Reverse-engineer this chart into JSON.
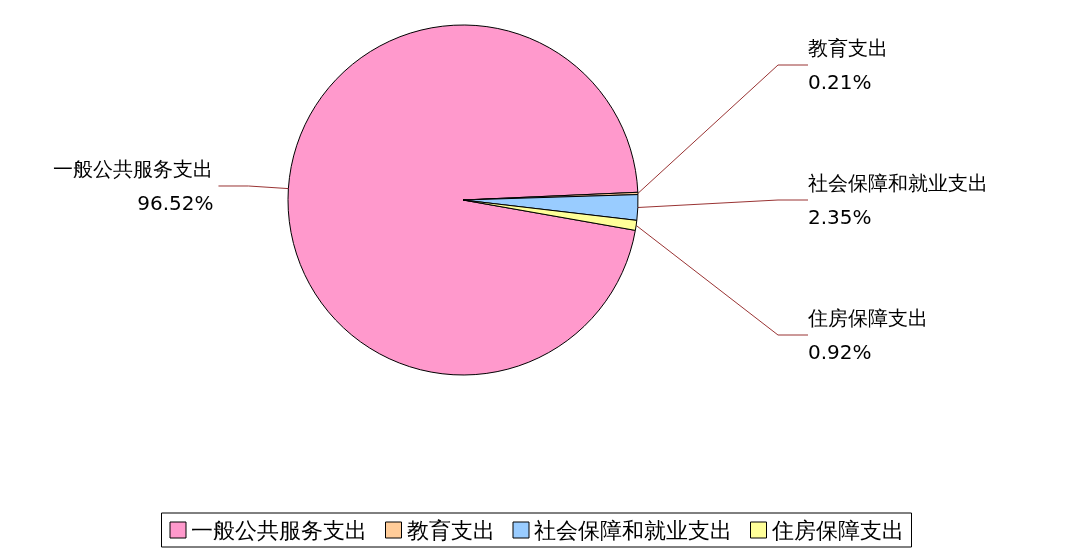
{
  "chart_data": {
    "type": "pie",
    "categories": [
      "一般公共服务支出",
      "教育支出",
      "社会保障和就业支出",
      "住房保障支出"
    ],
    "values": [
      96.52,
      0.21,
      2.35,
      0.92
    ],
    "value_labels": [
      "96.52%",
      "0.21%",
      "2.35%",
      "0.92%"
    ],
    "colors": [
      "#ff99cc",
      "#ffcc99",
      "#99ccff",
      "#ffff99"
    ],
    "legend": "bottom"
  }
}
